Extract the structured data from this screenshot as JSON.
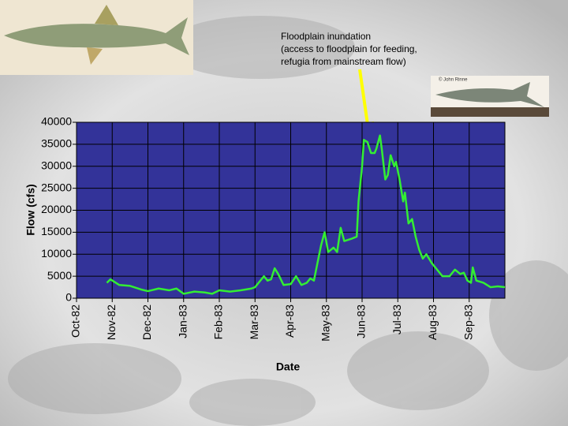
{
  "chart_data": {
    "type": "line",
    "annotation": [
      "Floodplain inundation",
      "(access to floodplain for feeding,",
      "refugia from mainstream flow)"
    ],
    "credit": "© John Rinne",
    "xlabel": "Date",
    "ylabel": "Flow (cfs)",
    "xlim": [
      0,
      12
    ],
    "xticks": [
      {
        "value": 0,
        "label": "Oct-82"
      },
      {
        "value": 1,
        "label": "Nov-82"
      },
      {
        "value": 2,
        "label": "Dec-82"
      },
      {
        "value": 3,
        "label": "Jan-83"
      },
      {
        "value": 4,
        "label": "Feb-83"
      },
      {
        "value": 5,
        "label": "Mar-83"
      },
      {
        "value": 6,
        "label": "Apr-83"
      },
      {
        "value": 7,
        "label": "May-83"
      },
      {
        "value": 8,
        "label": "Jun-83"
      },
      {
        "value": 9,
        "label": "Jul-83"
      },
      {
        "value": 10,
        "label": "Aug-83"
      },
      {
        "value": 11,
        "label": "Sep-83"
      }
    ],
    "ylim": [
      0,
      40000
    ],
    "yticks": [
      0,
      5000,
      10000,
      15000,
      20000,
      25000,
      30000,
      35000,
      40000
    ],
    "grid": true,
    "color": "#33ee33",
    "background": "#333399",
    "x": [
      0.85,
      0.95,
      1.2,
      1.5,
      1.8,
      2.0,
      2.3,
      2.6,
      2.8,
      3.0,
      3.3,
      3.6,
      3.8,
      4.0,
      4.3,
      4.6,
      4.9,
      5.0,
      5.1,
      5.25,
      5.35,
      5.45,
      5.55,
      5.65,
      5.8,
      6.0,
      6.15,
      6.3,
      6.45,
      6.55,
      6.65,
      6.75,
      6.85,
      6.95,
      7.05,
      7.2,
      7.3,
      7.4,
      7.5,
      7.7,
      7.85,
      7.9,
      8.0,
      8.05,
      8.15,
      8.25,
      8.35,
      8.4,
      8.5,
      8.55,
      8.65,
      8.72,
      8.8,
      8.9,
      8.95,
      9.05,
      9.15,
      9.2,
      9.3,
      9.4,
      9.5,
      9.6,
      9.7,
      9.8,
      9.95,
      10.1,
      10.25,
      10.45,
      10.6,
      10.75,
      10.85,
      10.95,
      11.05,
      11.1,
      11.2,
      11.4,
      11.6,
      11.8,
      12.0
    ],
    "values": [
      3500,
      4300,
      3000,
      2800,
      2000,
      1600,
      2200,
      1800,
      2200,
      1000,
      1500,
      1300,
      1000,
      1800,
      1500,
      1800,
      2200,
      2500,
      3500,
      5000,
      4000,
      4300,
      6800,
      5500,
      3000,
      3200,
      5000,
      3000,
      3500,
      4500,
      4000,
      8000,
      12000,
      15000,
      10500,
      11500,
      10500,
      16000,
      13000,
      13500,
      14000,
      22000,
      30000,
      36000,
      35500,
      33000,
      33000,
      34000,
      37000,
      34000,
      27000,
      28000,
      32500,
      30000,
      31000,
      27000,
      22000,
      24000,
      17000,
      18000,
      14000,
      11000,
      9000,
      10000,
      8000,
      6500,
      5000,
      5000,
      6500,
      5500,
      5800,
      4000,
      3500,
      7000,
      4000,
      3500,
      2500,
      2700,
      2500
    ]
  }
}
